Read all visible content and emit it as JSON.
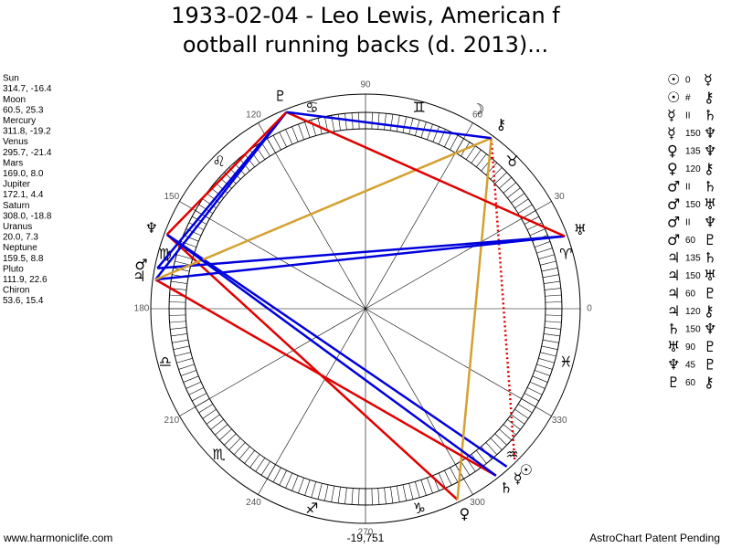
{
  "header": {
    "title_lines": [
      "1933-02-04 - Leo Lewis, American f",
      "ootball running backs (d. 2013)..."
    ]
  },
  "planets": [
    {
      "name": "Sun",
      "glyph": "☉",
      "longitude": 314.7,
      "declination": -16.4,
      "label": "314.7, -16.4"
    },
    {
      "name": "Moon",
      "glyph": "☽",
      "longitude": 60.5,
      "declination": 25.3,
      "label": "60.5, 25.3"
    },
    {
      "name": "Mercury",
      "glyph": "☿",
      "longitude": 311.8,
      "declination": -19.2,
      "label": "311.8, -19.2"
    },
    {
      "name": "Venus",
      "glyph": "♀",
      "longitude": 295.7,
      "declination": -21.4,
      "label": "295.7, -21.4"
    },
    {
      "name": "Mars",
      "glyph": "♂",
      "longitude": 169.0,
      "declination": 8.0,
      "label": "169.0, 8.0"
    },
    {
      "name": "Jupiter",
      "glyph": "♃",
      "longitude": 172.1,
      "declination": 4.4,
      "label": "172.1, 4.4"
    },
    {
      "name": "Saturn",
      "glyph": "♄",
      "longitude": 308.0,
      "declination": -18.8,
      "label": "308.0, -18.8"
    },
    {
      "name": "Uranus",
      "glyph": "♅",
      "longitude": 20.0,
      "declination": 7.3,
      "label": "20.0, 7.3"
    },
    {
      "name": "Neptune",
      "glyph": "♆",
      "longitude": 159.5,
      "declination": 8.8,
      "label": "159.5, 8.8"
    },
    {
      "name": "Pluto",
      "glyph": "♇",
      "longitude": 111.9,
      "declination": 22.6,
      "label": "111.9, 22.6"
    },
    {
      "name": "Chiron",
      "glyph": "⚷",
      "longitude": 53.6,
      "declination": 15.4,
      "label": "53.6, 15.4"
    }
  ],
  "aspects": [
    {
      "from": "☉",
      "angle": 0,
      "to": "☿"
    },
    {
      "from": "☉",
      "angle": "#",
      "to": "⚷"
    },
    {
      "from": "☿",
      "angle": "II",
      "to": "♄"
    },
    {
      "from": "☿",
      "angle": 150,
      "to": "♆"
    },
    {
      "from": "♀",
      "angle": 135,
      "to": "♆"
    },
    {
      "from": "♀",
      "angle": 120,
      "to": "⚷"
    },
    {
      "from": "♂",
      "angle": "II",
      "to": "♄"
    },
    {
      "from": "♂",
      "angle": 150,
      "to": "♅"
    },
    {
      "from": "♂",
      "angle": "II",
      "to": "♆"
    },
    {
      "from": "♂",
      "angle": 60,
      "to": "♇"
    },
    {
      "from": "♃",
      "angle": 135,
      "to": "♄"
    },
    {
      "from": "♃",
      "angle": 150,
      "to": "♅"
    },
    {
      "from": "♃",
      "angle": 60,
      "to": "♇"
    },
    {
      "from": "♃",
      "angle": 120,
      "to": "⚷"
    },
    {
      "from": "♄",
      "angle": 150,
      "to": "♆"
    },
    {
      "from": "♅",
      "angle": 90,
      "to": "♇"
    },
    {
      "from": "♆",
      "angle": 45,
      "to": "♇"
    },
    {
      "from": "♇",
      "angle": 60,
      "to": "⚷"
    }
  ],
  "signs": [
    "♈",
    "♉",
    "♊",
    "♋",
    "♌",
    "♍",
    "♎",
    "♏",
    "♐",
    "♑",
    "♒",
    "♓"
  ],
  "degree_labels": [
    0,
    30,
    60,
    90,
    120,
    150,
    180,
    210,
    240,
    270,
    300,
    330
  ],
  "footer": {
    "left": "www.harmoniclife.com",
    "center": "-19,751",
    "right": "AstroChart Patent Pending"
  }
}
